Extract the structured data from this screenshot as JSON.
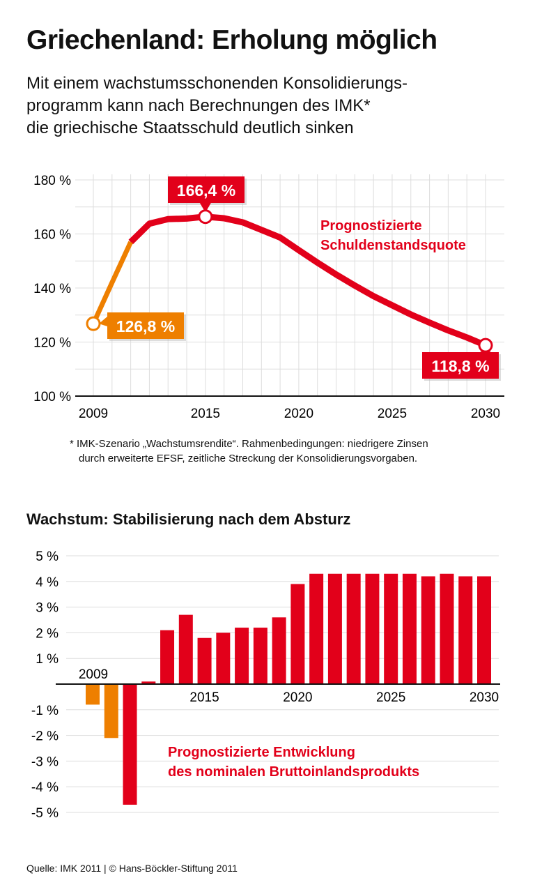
{
  "title": "Griechenland: Erholung möglich",
  "subtitle": [
    "Mit einem wachstumsschonenden Konsolidierungs-",
    "programm kann nach Berechnungen des IMK*",
    "die griechische Staatsschuld deutlich sinken"
  ],
  "footnote": [
    "* IMK-Szenario „Wachstumsrendite“. Rahmenbedingungen: niedrigere Zinsen",
    "durch erweiterte EFSF, zeitliche Streckung der Konsolidierungsvorgaben."
  ],
  "section2_title": "Wachstum: Stabilisierung nach dem Absturz",
  "source": "Quelle: IMK 2011 | © Hans-Böckler-Stiftung 2011",
  "colors": {
    "red": "#e2001a",
    "orange": "#ee7f00",
    "grid": "#dddddd"
  },
  "chart_data": [
    {
      "type": "line",
      "ylim": [
        100,
        180
      ],
      "yticks": [
        "100 %",
        "120 %",
        "140 %",
        "160 %",
        "180 %"
      ],
      "xticks": [
        "2009",
        "2015",
        "2020",
        "2025",
        "2030"
      ],
      "grid": true,
      "annotation": [
        "Prognostizierte",
        "Schuldenstandsquote"
      ],
      "x": [
        2009,
        2010,
        2011,
        2012,
        2013,
        2014,
        2015,
        2016,
        2017,
        2018,
        2019,
        2020,
        2021,
        2022,
        2023,
        2024,
        2025,
        2026,
        2027,
        2028,
        2029,
        2030
      ],
      "values": [
        126.8,
        142,
        157,
        163.8,
        165.5,
        165.7,
        166.4,
        165.8,
        164.3,
        161.5,
        158.7,
        154,
        149.4,
        145,
        140.9,
        137,
        133.6,
        130.2,
        127.2,
        124.3,
        121.7,
        118.8
      ],
      "actual_until": 2011,
      "labels": [
        {
          "x": 2009,
          "text": "126,8 %",
          "color": "orange"
        },
        {
          "x": 2015,
          "text": "166,4 %",
          "color": "red"
        },
        {
          "x": 2030,
          "text": "118,8 %",
          "color": "red"
        }
      ]
    },
    {
      "type": "bar",
      "ylim": [
        -5,
        5
      ],
      "yticks": [
        "-5 %",
        "-4 %",
        "-3 %",
        "-2 %",
        "-1 %",
        "1 %",
        "2 %",
        "3 %",
        "4 %",
        "5 %"
      ],
      "xticks": [
        "2009",
        "2015",
        "2020",
        "2025",
        "2030"
      ],
      "grid": true,
      "annotation": [
        "Prognostizierte Entwicklung",
        "des nominalen Bruttoinlandsprodukts"
      ],
      "categories": [
        2009,
        2010,
        2011,
        2012,
        2013,
        2014,
        2015,
        2016,
        2017,
        2018,
        2019,
        2020,
        2021,
        2022,
        2023,
        2024,
        2025,
        2026,
        2027,
        2028,
        2029,
        2030
      ],
      "values": [
        -0.8,
        -2.1,
        -4.7,
        0.1,
        2.1,
        2.7,
        1.8,
        2.0,
        2.2,
        2.2,
        2.6,
        3.9,
        4.3,
        4.3,
        4.3,
        4.3,
        4.3,
        4.3,
        4.2,
        4.3,
        4.2,
        4.2
      ],
      "actual_until": 2010
    }
  ]
}
